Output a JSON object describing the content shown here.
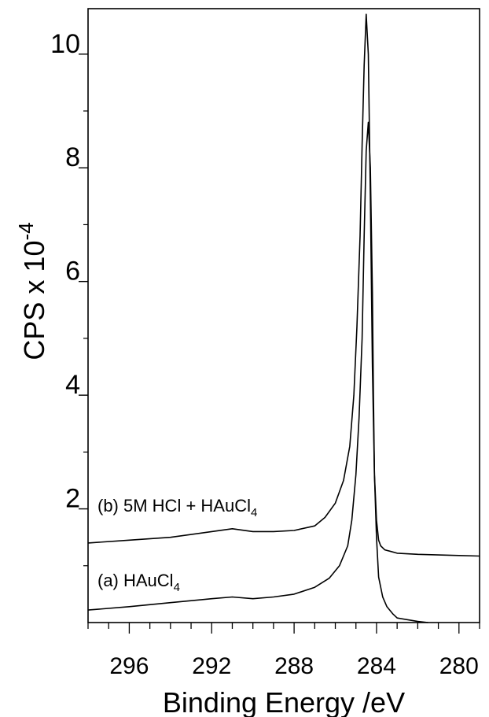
{
  "chart_data": {
    "type": "line",
    "title": "",
    "xlabel": "Binding Energy /eV",
    "ylabel": "CPS x 10",
    "ylabel_exponent": "-4",
    "xlim": [
      298,
      279
    ],
    "ylim": [
      0,
      10.8
    ],
    "x_reversed": true,
    "x_ticks": [
      296,
      292,
      288,
      284,
      280
    ],
    "y_ticks": [
      2,
      4,
      6,
      8,
      10
    ],
    "grid": false,
    "series": [
      {
        "name": "(b) 5M HCl + HAuCl",
        "name_subscript": "4",
        "x": [
          298,
          296,
          294,
          292,
          291,
          290,
          289,
          288,
          287,
          286.5,
          286,
          285.6,
          285.3,
          285.1,
          284.95,
          284.8,
          284.7,
          284.6,
          284.5,
          284.4,
          284.3,
          284.2,
          284.1,
          284.0,
          283.9,
          283.8,
          283.6,
          283.3,
          283,
          282,
          280,
          279
        ],
        "y": [
          1.4,
          1.45,
          1.5,
          1.6,
          1.65,
          1.6,
          1.6,
          1.62,
          1.7,
          1.85,
          2.1,
          2.5,
          3.1,
          4.0,
          5.2,
          6.8,
          8.4,
          9.8,
          10.7,
          10.0,
          7.5,
          4.5,
          2.6,
          1.8,
          1.45,
          1.35,
          1.28,
          1.25,
          1.22,
          1.2,
          1.18,
          1.17
        ]
      },
      {
        "name": "(a) HAuCl",
        "name_subscript": "4",
        "x": [
          298,
          296,
          294,
          292,
          291,
          290,
          289,
          288,
          287,
          286.3,
          285.8,
          285.4,
          285.2,
          285.0,
          284.85,
          284.7,
          284.6,
          284.5,
          284.4,
          284.3,
          284.2,
          284.15,
          284.1,
          284.0,
          283.9,
          283.7,
          283.5,
          283.2,
          283,
          282,
          281.5
        ],
        "y": [
          0.22,
          0.28,
          0.35,
          0.42,
          0.45,
          0.42,
          0.45,
          0.5,
          0.62,
          0.78,
          1.0,
          1.35,
          1.8,
          2.6,
          3.6,
          5.0,
          6.8,
          8.3,
          8.8,
          8.0,
          5.8,
          4.0,
          2.6,
          1.5,
          0.8,
          0.45,
          0.28,
          0.15,
          0.08,
          0.02,
          0.0
        ]
      }
    ]
  }
}
